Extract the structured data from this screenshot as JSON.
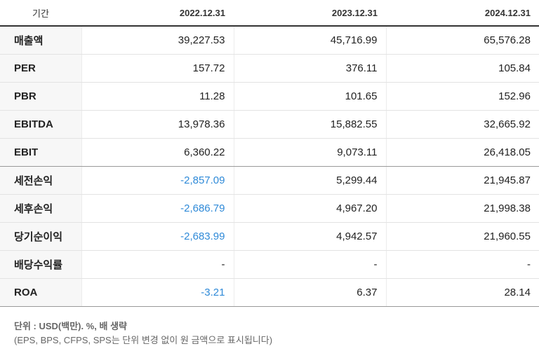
{
  "header": {
    "label": "기간",
    "periods": [
      "2022.12.31",
      "2023.12.31",
      "2024.12.31"
    ]
  },
  "rows": [
    {
      "label": "매출액",
      "values": [
        "39,227.53",
        "45,716.99",
        "65,576.28"
      ]
    },
    {
      "label": "PER",
      "values": [
        "157.72",
        "376.11",
        "105.84"
      ]
    },
    {
      "label": "PBR",
      "values": [
        "11.28",
        "101.65",
        "152.96"
      ]
    },
    {
      "label": "EBITDA",
      "values": [
        "13,978.36",
        "15,882.55",
        "32,665.92"
      ]
    },
    {
      "label": "EBIT",
      "values": [
        "6,360.22",
        "9,073.11",
        "26,418.05"
      ]
    },
    {
      "label": "세전손익",
      "values": [
        "-2,857.09",
        "5,299.44",
        "21,945.87"
      ]
    },
    {
      "label": "세후손익",
      "values": [
        "-2,686.79",
        "4,967.20",
        "21,998.38"
      ]
    },
    {
      "label": "당기순이익",
      "values": [
        "-2,683.99",
        "4,942.57",
        "21,960.55"
      ]
    },
    {
      "label": "배당수익률",
      "values": [
        "-",
        "-",
        "-"
      ]
    },
    {
      "label": "ROA",
      "values": [
        "-3.21",
        "6.37",
        "28.14"
      ]
    }
  ],
  "footer": {
    "unit_note": "단위 : USD(백만). %, 배 생략",
    "note": "(EPS, BPS, CFPS, SPS는 단위 변경 없이 원 금액으로 표시됩니다)"
  },
  "colors": {
    "negative": "#2f8ad8",
    "label_bg": "#f7f7f7"
  }
}
